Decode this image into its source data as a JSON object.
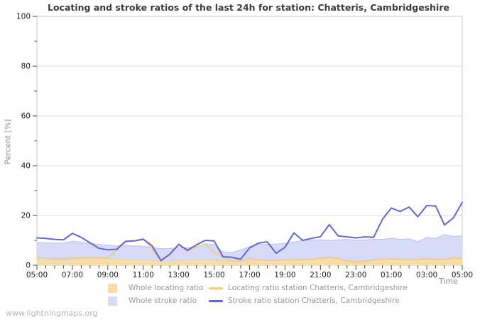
{
  "title": "Locating and stroke ratios of the last 24h for station: Chatteris, Cambridgeshire",
  "watermark": "www.lightningmaps.org",
  "axes": {
    "y_label": "Percent  [%]",
    "x_label": "Time"
  },
  "colors": {
    "grid": "#dcdcdc",
    "border": "#c8c8c8",
    "tick": "#444444",
    "tick_label": "#1c1c1c",
    "title": "#3b3b3b",
    "axis_label": "#8a8a8a",
    "legend_text": "#97979b",
    "watermark": "#b5b5b5"
  },
  "chart_data": {
    "type": "area",
    "title": "Locating and stroke ratios of the last 24h for station: Chatteris, Cambridgeshire",
    "xlabel": "Time",
    "ylabel": "Percent  [%]",
    "ylim": [
      0,
      100
    ],
    "grid": "horizontal-major",
    "legend_position": "bottom",
    "x_labels": [
      "05:00",
      "07:00",
      "09:00",
      "11:00",
      "13:00",
      "15:00",
      "17:00",
      "19:00",
      "21:00",
      "23:00",
      "01:00",
      "03:00",
      "05:00"
    ],
    "x_minor_interval_minutes": 30,
    "y_ticks_major": [
      0,
      20,
      40,
      60,
      80,
      100
    ],
    "y_ticks_minor": [
      10,
      30,
      50,
      70,
      90
    ],
    "sample_interval_minutes": 30,
    "series": [
      {
        "name": "Whole stroke ratio",
        "type": "area",
        "color": "#d7dbf7",
        "edge": "#b9bff0",
        "values": [
          9.1,
          9.0,
          8.9,
          8.9,
          9.7,
          9.2,
          8.8,
          8.4,
          8.0,
          7.8,
          8.0,
          7.8,
          7.6,
          7.2,
          6.6,
          6.8,
          7.0,
          7.0,
          7.4,
          8.6,
          8.3,
          5.4,
          5.1,
          6.2,
          7.5,
          8.3,
          8.4,
          8.5,
          8.8,
          9.3,
          10.0,
          10.1,
          10.2,
          10.0,
          10.2,
          10.4,
          10.0,
          10.2,
          10.4,
          10.4,
          10.9,
          10.4,
          10.6,
          9.4,
          11.2,
          10.8,
          12.3,
          11.6,
          11.8
        ]
      },
      {
        "name": "Whole locating ratio",
        "type": "area",
        "color": "#f8dfa8",
        "edge": "#eed2a0",
        "values": [
          2.2,
          2.1,
          2.0,
          2.0,
          2.2,
          2.4,
          2.6,
          2.6,
          2.5,
          2.4,
          2.3,
          2.2,
          2.1,
          1.9,
          1.6,
          1.7,
          1.9,
          2.0,
          2.1,
          2.2,
          2.0,
          1.8,
          1.6,
          1.6,
          1.8,
          1.9,
          2.0,
          2.0,
          2.1,
          2.2,
          2.2,
          2.3,
          2.4,
          2.6,
          2.4,
          2.0,
          1.8,
          1.9,
          2.1,
          2.3,
          2.4,
          2.3,
          2.2,
          2.3,
          2.4,
          2.3,
          2.2,
          2.6,
          2.4
        ]
      },
      {
        "name": "Locating ratio station Chatteris, Cambridgeshire",
        "type": "line",
        "color": "#f1ca86",
        "width": 1.7,
        "values": [
          3.0,
          2.9,
          2.7,
          2.6,
          2.9,
          3.1,
          3.2,
          3.0,
          3.0,
          6.0,
          9.4,
          9.9,
          10.8,
          6.5,
          1.8,
          4.0,
          8.7,
          5.5,
          7.5,
          8.5,
          5.1,
          3.2,
          1.8,
          1.6,
          2.9,
          2.2,
          2.0,
          2.0,
          2.2,
          2.3,
          2.2,
          2.4,
          3.0,
          3.3,
          2.8,
          1.6,
          1.2,
          1.5,
          2.2,
          2.4,
          2.6,
          2.4,
          2.2,
          2.4,
          2.6,
          2.4,
          2.2,
          3.2,
          2.6
        ]
      },
      {
        "name": "Stroke ratio station Chatteris, Cambridgeshire",
        "type": "line",
        "color": "#6167d1",
        "width": 2,
        "values": [
          11.0,
          10.8,
          10.4,
          10.2,
          12.8,
          11.2,
          9.0,
          6.8,
          6.2,
          6.4,
          9.6,
          9.8,
          10.4,
          7.8,
          1.9,
          4.5,
          8.3,
          6.0,
          8.2,
          10.0,
          9.8,
          3.4,
          3.2,
          2.4,
          7.0,
          8.9,
          9.4,
          4.8,
          7.2,
          13.0,
          10.0,
          10.8,
          11.5,
          16.3,
          11.8,
          11.4,
          11.0,
          11.4,
          11.2,
          18.5,
          23.0,
          21.6,
          23.4,
          19.5,
          24.0,
          23.8,
          16.2,
          19.0,
          25.2
        ]
      }
    ]
  }
}
